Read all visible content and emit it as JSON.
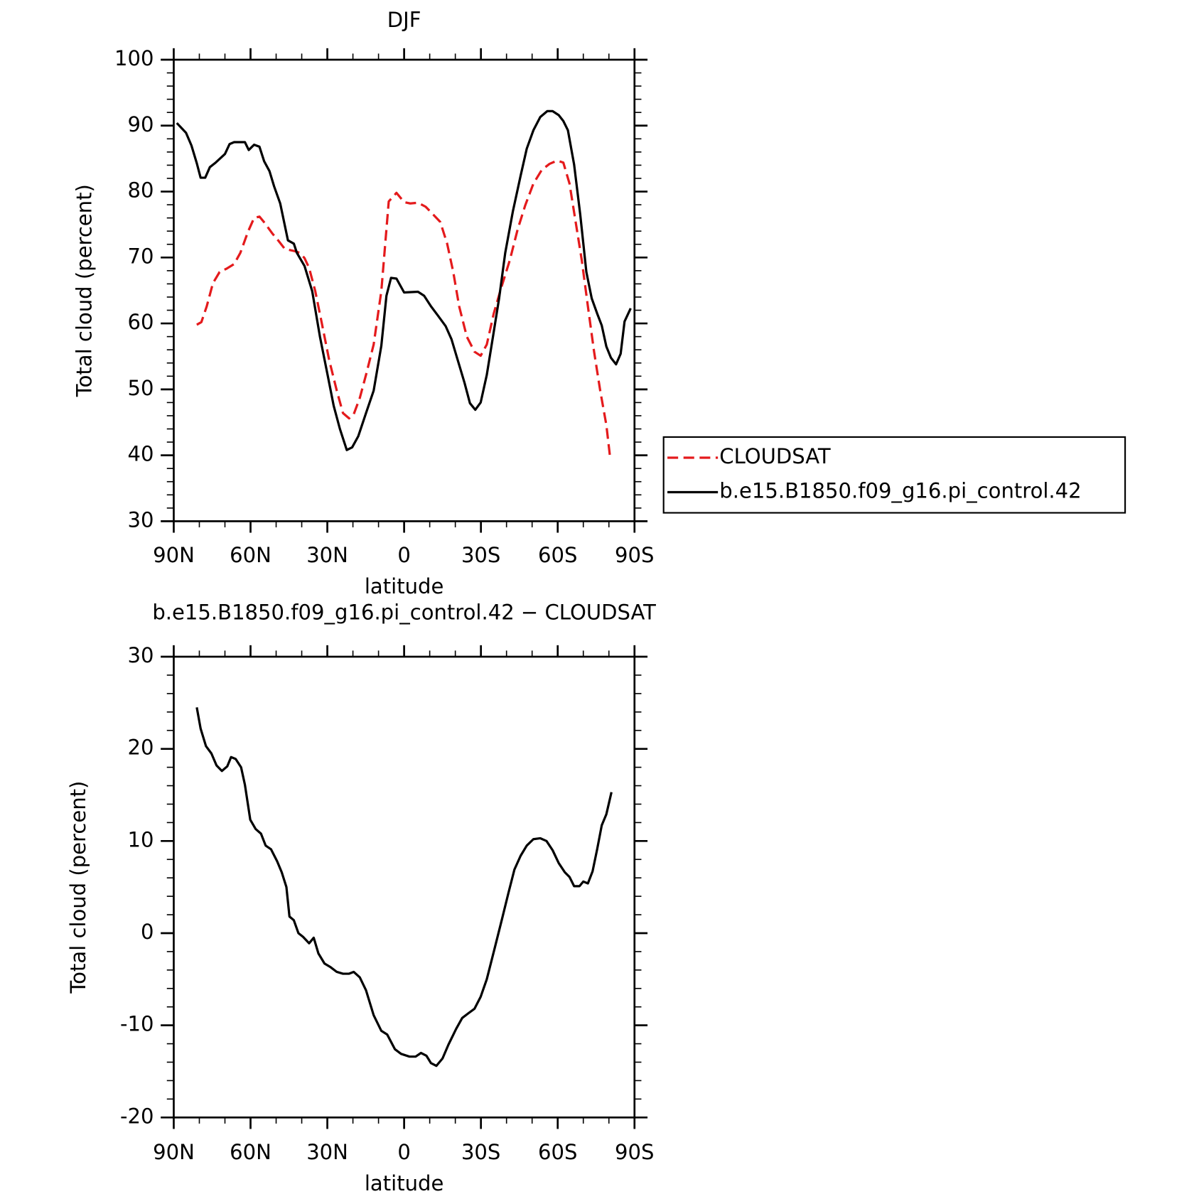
{
  "chart_data": [
    {
      "type": "line",
      "title": "DJF",
      "xlabel": "latitude",
      "ylabel": "Total cloud (percent)",
      "xlim": [
        90,
        -90
      ],
      "xticks": [
        {
          "value": 90,
          "label": "90N"
        },
        {
          "value": 60,
          "label": "60N"
        },
        {
          "value": 30,
          "label": "30N"
        },
        0,
        {
          "value": -30,
          "label": "30S"
        },
        {
          "value": -60,
          "label": "60S"
        },
        {
          "value": -90,
          "label": "90S"
        }
      ],
      "ylim": [
        30,
        100
      ],
      "yticks": [
        30,
        40,
        50,
        60,
        70,
        80,
        90,
        100
      ],
      "legend": "right",
      "series": [
        {
          "name": "CLOUDSAT",
          "color": "#e41a1c",
          "linestyle": "dashed",
          "x": [
            81.0,
            79.2,
            77.1,
            74.7,
            72.1,
            69.4,
            66.4,
            64.0,
            61.0,
            58.6,
            56.5,
            54.4,
            51.4,
            49.0,
            46.6,
            43.1,
            40.7,
            38.9,
            37.1,
            34.7,
            32.3,
            29.3,
            26.3,
            23.9,
            21.5,
            19.7,
            17.3,
            14.9,
            11.9,
            8.9,
            6.0,
            3.0,
            0.0,
            -2.4,
            -5.4,
            -8.4,
            -11.4,
            -14.1,
            -16.8,
            -19.2,
            -21.5,
            -24.5,
            -27.5,
            -29.9,
            -32.3,
            -35.0,
            -38.0,
            -41.3,
            -44.3,
            -47.3,
            -50.5,
            -53.8,
            -56.8,
            -59.8,
            -62.2,
            -64.6,
            -67.0,
            -69.4,
            -71.8,
            -74.2,
            -76.6,
            -79.0,
            -80.5
          ],
          "values": [
            59.8,
            60.2,
            62.6,
            66.1,
            67.8,
            68.3,
            69.0,
            70.7,
            73.9,
            76.0,
            76.2,
            75.2,
            73.6,
            72.5,
            71.3,
            71.0,
            70.7,
            69.9,
            68.4,
            64.9,
            60.3,
            54.5,
            49.8,
            46.4,
            45.6,
            46.2,
            48.7,
            52.2,
            56.8,
            64.9,
            78.5,
            79.8,
            78.4,
            78.2,
            78.3,
            77.7,
            76.5,
            75.4,
            72.1,
            67.8,
            62.6,
            58.0,
            55.7,
            55.1,
            56.8,
            61.5,
            65.5,
            69.6,
            74.2,
            77.9,
            81.2,
            83.3,
            84.2,
            84.7,
            84.4,
            81.2,
            75.4,
            69.6,
            62.6,
            55.7,
            49.8,
            44.6,
            39.6
          ]
        },
        {
          "name": "b.e15.B1850.f09_g16.pi_control.42",
          "color": "#000000",
          "linestyle": "solid",
          "x": [
            88.8,
            85.2,
            83.1,
            81.0,
            79.5,
            77.7,
            75.9,
            73.6,
            70.0,
            68.2,
            66.4,
            62.2,
            60.7,
            58.6,
            56.5,
            54.7,
            52.6,
            50.8,
            48.4,
            45.4,
            43.1,
            41.9,
            38.9,
            35.9,
            32.9,
            29.9,
            27.5,
            25.1,
            22.4,
            20.3,
            17.9,
            14.9,
            11.9,
            8.9,
            6.9,
            5.1,
            3.0,
            0.0,
            -5.4,
            -7.8,
            -10.5,
            -13.2,
            -16.2,
            -18.5,
            -20.9,
            -23.6,
            -25.7,
            -27.8,
            -29.9,
            -32.3,
            -34.7,
            -37.1,
            -39.5,
            -42.5,
            -45.5,
            -47.9,
            -50.5,
            -53.2,
            -55.9,
            -58.0,
            -60.4,
            -62.2,
            -64.0,
            -66.4,
            -68.8,
            -71.2,
            -73.3,
            -75.4,
            -77.2,
            -79.0,
            -80.8,
            -82.8,
            -84.6,
            -86.1,
            -88.5
          ],
          "values": [
            90.4,
            88.9,
            87.0,
            84.3,
            82.1,
            82.1,
            83.7,
            84.4,
            85.7,
            87.2,
            87.5,
            87.5,
            86.3,
            87.1,
            86.8,
            84.6,
            83.1,
            80.8,
            78.2,
            72.6,
            72.1,
            70.7,
            68.7,
            64.9,
            58.0,
            52.2,
            47.5,
            44.0,
            40.8,
            41.2,
            42.9,
            46.4,
            49.8,
            56.6,
            64.2,
            66.9,
            66.8,
            64.7,
            64.8,
            64.2,
            62.6,
            61.2,
            59.6,
            57.6,
            54.5,
            51.0,
            47.9,
            46.9,
            48.0,
            52.2,
            58.0,
            63.8,
            70.7,
            77.0,
            82.4,
            86.5,
            89.3,
            91.3,
            92.2,
            92.2,
            91.6,
            90.7,
            89.3,
            84.1,
            76.5,
            67.8,
            63.8,
            61.5,
            59.7,
            56.5,
            54.8,
            53.8,
            55.4,
            60.3,
            62.3
          ]
        }
      ]
    },
    {
      "type": "line",
      "title": "b.e15.B1850.f09_g16.pi_control.42 − CLOUDSAT",
      "xlabel": "latitude",
      "ylabel": "Total cloud (percent)",
      "xlim": [
        90,
        -90
      ],
      "xticks": [
        {
          "value": 90,
          "label": "90N"
        },
        {
          "value": 60,
          "label": "60N"
        },
        {
          "value": 30,
          "label": "30N"
        },
        0,
        {
          "value": -30,
          "label": "30S"
        },
        {
          "value": -60,
          "label": "60S"
        },
        {
          "value": -90,
          "label": "90S"
        }
      ],
      "ylim": [
        -20,
        30
      ],
      "yticks": [
        -20,
        -10,
        0,
        10,
        20,
        30
      ],
      "color": "#000000",
      "x": [
        81.0,
        79.5,
        77.4,
        75.3,
        73.3,
        71.2,
        69.1,
        67.6,
        65.8,
        63.7,
        62.2,
        60.1,
        58.0,
        55.9,
        54.1,
        52.0,
        49.6,
        47.8,
        46.0,
        44.8,
        43.1,
        41.3,
        39.5,
        37.1,
        35.3,
        33.5,
        31.1,
        28.7,
        26.3,
        23.9,
        21.5,
        19.7,
        17.3,
        14.9,
        11.9,
        8.9,
        6.6,
        3.6,
        1.2,
        -2.1,
        -4.5,
        -6.6,
        -8.7,
        -10.5,
        -12.6,
        -15.0,
        -17.3,
        -20.3,
        -22.7,
        -25.1,
        -27.5,
        -29.9,
        -32.3,
        -35.3,
        -38.3,
        -40.7,
        -43.1,
        -45.5,
        -47.9,
        -50.5,
        -53.2,
        -55.6,
        -58.0,
        -60.4,
        -62.8,
        -64.6,
        -66.4,
        -68.5,
        -70.0,
        -71.8,
        -73.6,
        -75.4,
        -77.2,
        -79.0,
        -81.0
      ],
      "values": [
        24.5,
        22.2,
        20.3,
        19.5,
        18.2,
        17.6,
        18.1,
        19.1,
        18.9,
        18.0,
        16.1,
        12.3,
        11.3,
        10.8,
        9.5,
        9.1,
        7.8,
        6.6,
        5.0,
        1.8,
        1.4,
        0.0,
        -0.4,
        -1.1,
        -0.5,
        -2.2,
        -3.3,
        -3.7,
        -4.2,
        -4.4,
        -4.4,
        -4.2,
        -4.8,
        -6.2,
        -8.9,
        -10.6,
        -11.0,
        -12.6,
        -13.1,
        -13.4,
        -13.4,
        -13.0,
        -13.3,
        -14.1,
        -14.4,
        -13.6,
        -12.1,
        -10.4,
        -9.2,
        -8.7,
        -8.2,
        -6.9,
        -5.0,
        -1.7,
        1.6,
        4.3,
        6.9,
        8.4,
        9.5,
        10.2,
        10.3,
        10.0,
        9.0,
        7.6,
        6.6,
        6.1,
        5.1,
        5.1,
        5.6,
        5.4,
        6.7,
        9.1,
        11.7,
        12.9,
        15.3
      ]
    }
  ]
}
